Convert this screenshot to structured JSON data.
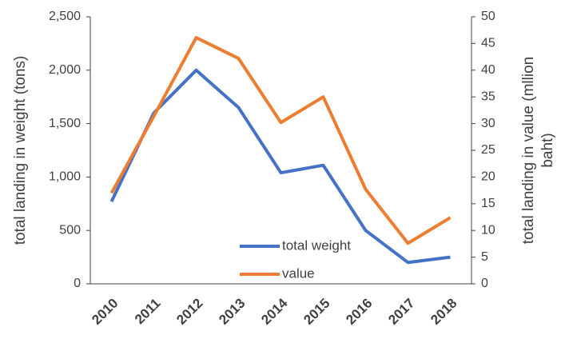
{
  "chart_data": {
    "type": "line",
    "categories": [
      "2010",
      "2011",
      "2012",
      "2013",
      "2014",
      "2015",
      "2016",
      "2017",
      "2018"
    ],
    "ylabel": "total  landing in weight (tons)",
    "y2label": [
      "total landing in value (mllion",
      "baht)"
    ],
    "series": [
      {
        "name": "total weight",
        "color": "#4472c4",
        "values": [
          770,
          1600,
          2000,
          1650,
          1040,
          1110,
          500,
          200,
          250
        ]
      },
      {
        "name": "value",
        "color": "#ed7d31",
        "axis": "y2",
        "values": [
          17,
          31.4,
          46.1,
          42.2,
          30.2,
          35,
          17.7,
          7.6,
          12.4
        ]
      }
    ],
    "ylim": [
      0,
      2500
    ],
    "yticks": [
      0,
      500,
      {
        "value": 1000,
        "label": "1,000"
      },
      {
        "value": 1500,
        "label": "1,500"
      },
      {
        "value": 2000,
        "label": "2,000"
      },
      {
        "value": 2500,
        "label": "2,500"
      }
    ],
    "y2lim": [
      0,
      50
    ],
    "y2ticks": [
      0,
      5,
      10,
      15,
      20,
      25,
      30,
      35,
      40,
      45,
      50
    ],
    "grid": false
  }
}
